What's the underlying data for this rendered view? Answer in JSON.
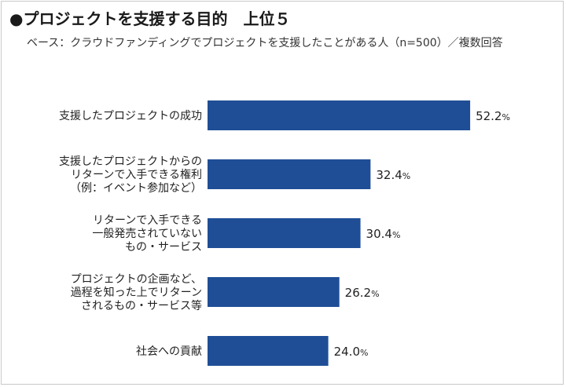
{
  "title": "●プロジェクトを支援する目的　上位５",
  "subtitle": "ベース：クラウドファンディングでプロジェクトを支援したことがある人（n=500）／複数回答",
  "colors": {
    "bar": "#1f4e96",
    "text": "#222222"
  },
  "chart_data": {
    "type": "bar",
    "orientation": "horizontal",
    "categories": [
      [
        "支援したプロジェクトの成功"
      ],
      [
        "支援したプロジェクトからの",
        "リターンで入手できる権利",
        "（例：イベント参加など）"
      ],
      [
        "リターンで入手できる",
        "一般発売されていない",
        "もの・サービス"
      ],
      [
        "プロジェクトの企画など、",
        "過程を知った上でリターン",
        "されるもの・サービス等"
      ],
      [
        "社会への貢献"
      ]
    ],
    "values": [
      52.2,
      32.4,
      30.4,
      26.2,
      24.0
    ],
    "value_labels": [
      "52.2",
      "32.4",
      "30.4",
      "26.2",
      "24.0"
    ],
    "unit": "%",
    "xlim": [
      0,
      60
    ],
    "grid": false,
    "legend": "none"
  }
}
